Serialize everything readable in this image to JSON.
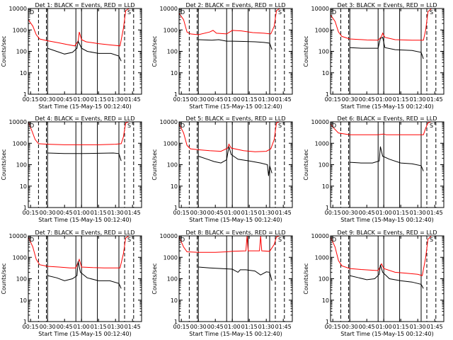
{
  "figure": {
    "xlabel": "Start Time (15-May-15 00:12:40)",
    "ylabel": "Counts/sec"
  },
  "chart_data": {
    "type": "line",
    "title_format": "Det {n}: BLACK = Events, RED = LLD",
    "x_unit": "minutes after 00:00 (15-May-15)",
    "xlim": [
      13,
      113
    ],
    "xticks": [
      15,
      30,
      45,
      60,
      75,
      90,
      105
    ],
    "xtick_labels": [
      "00:15",
      "00:30",
      "00:45",
      "01:00",
      "01:15",
      "01:30",
      "01:45"
    ],
    "yscale": "log",
    "ylim": [
      1,
      10000
    ],
    "yticks": [
      1,
      10,
      100,
      1000,
      10000
    ],
    "ytick_labels": [
      "1",
      "10",
      "100",
      "1000",
      "10000"
    ],
    "legend_marks": [
      "D",
      "S"
    ],
    "colors": {
      "events": "#000000",
      "lld": "#ff0000",
      "axes": "#000000"
    },
    "vlines_dashed": [
      22,
      29,
      98,
      106
    ],
    "vlines_solid": [
      30,
      55,
      60,
      74,
      93
    ],
    "panels": [
      {
        "det": 1,
        "lld": [
          [
            13,
            3000
          ],
          [
            17,
            1500
          ],
          [
            20,
            600
          ],
          [
            23,
            380
          ],
          [
            29,
            320
          ],
          [
            40,
            250
          ],
          [
            47,
            210
          ],
          [
            54,
            180
          ],
          [
            57,
            300
          ],
          [
            58,
            800
          ],
          [
            60,
            350
          ],
          [
            64,
            280
          ],
          [
            75,
            230
          ],
          [
            85,
            200
          ],
          [
            94,
            180
          ],
          [
            97,
            1200
          ],
          [
            99,
            8000
          ],
          [
            102,
            10000
          ],
          [
            110,
            10000
          ]
        ],
        "events": [
          [
            30,
            140
          ],
          [
            38,
            100
          ],
          [
            45,
            75
          ],
          [
            52,
            90
          ],
          [
            56,
            140
          ],
          [
            57,
            300
          ],
          [
            60,
            140
          ],
          [
            65,
            100
          ],
          [
            75,
            80
          ],
          [
            86,
            80
          ],
          [
            93,
            60
          ],
          [
            95,
            35
          ]
        ]
      },
      {
        "det": 2,
        "lld": [
          [
            13,
            6000
          ],
          [
            17,
            3000
          ],
          [
            20,
            800
          ],
          [
            23,
            650
          ],
          [
            30,
            600
          ],
          [
            40,
            800
          ],
          [
            43,
            950
          ],
          [
            46,
            700
          ],
          [
            55,
            650
          ],
          [
            60,
            950
          ],
          [
            68,
            900
          ],
          [
            78,
            750
          ],
          [
            88,
            700
          ],
          [
            94,
            650
          ],
          [
            97,
            1500
          ],
          [
            99,
            8000
          ],
          [
            102,
            10000
          ],
          [
            110,
            10000
          ]
        ],
        "events": [
          [
            30,
            350
          ],
          [
            42,
            330
          ],
          [
            48,
            350
          ],
          [
            55,
            300
          ],
          [
            60,
            300
          ],
          [
            70,
            290
          ],
          [
            80,
            280
          ],
          [
            88,
            260
          ],
          [
            93,
            240
          ],
          [
            95,
            120
          ]
        ]
      },
      {
        "det": 3,
        "lld": [
          [
            13,
            5000
          ],
          [
            17,
            2500
          ],
          [
            20,
            800
          ],
          [
            23,
            500
          ],
          [
            30,
            380
          ],
          [
            45,
            340
          ],
          [
            55,
            330
          ],
          [
            58,
            500
          ],
          [
            59,
            700
          ],
          [
            61,
            450
          ],
          [
            70,
            350
          ],
          [
            85,
            330
          ],
          [
            95,
            330
          ],
          [
            97,
            1000
          ],
          [
            99,
            7000
          ],
          [
            102,
            10000
          ],
          [
            110,
            10000
          ]
        ],
        "events": [
          [
            30,
            150
          ],
          [
            40,
            140
          ],
          [
            50,
            140
          ],
          [
            55,
            140
          ],
          [
            57,
            400
          ],
          [
            59,
            450
          ],
          [
            61,
            150
          ],
          [
            70,
            120
          ],
          [
            85,
            110
          ],
          [
            93,
            90
          ],
          [
            95,
            45
          ]
        ]
      },
      {
        "det": 4,
        "lld": [
          [
            13,
            10000
          ],
          [
            16,
            4000
          ],
          [
            19,
            1500
          ],
          [
            22,
            950
          ],
          [
            30,
            900
          ],
          [
            45,
            850
          ],
          [
            60,
            850
          ],
          [
            75,
            850
          ],
          [
            90,
            900
          ],
          [
            95,
            950
          ],
          [
            97,
            2000
          ],
          [
            99,
            9000
          ],
          [
            102,
            10000
          ],
          [
            110,
            10000
          ]
        ],
        "events": [
          [
            30,
            350
          ],
          [
            45,
            330
          ],
          [
            60,
            330
          ],
          [
            75,
            340
          ],
          [
            88,
            350
          ],
          [
            93,
            330
          ],
          [
            95,
            150
          ]
        ]
      },
      {
        "det": 5,
        "lld": [
          [
            13,
            8000
          ],
          [
            17,
            3000
          ],
          [
            20,
            800
          ],
          [
            23,
            550
          ],
          [
            30,
            500
          ],
          [
            40,
            450
          ],
          [
            50,
            420
          ],
          [
            56,
            600
          ],
          [
            57,
            900
          ],
          [
            59,
            600
          ],
          [
            70,
            450
          ],
          [
            80,
            400
          ],
          [
            90,
            420
          ],
          [
            94,
            550
          ],
          [
            97,
            1500
          ],
          [
            99,
            9000
          ],
          [
            102,
            10000
          ],
          [
            110,
            10000
          ]
        ],
        "events": [
          [
            30,
            250
          ],
          [
            38,
            180
          ],
          [
            44,
            140
          ],
          [
            50,
            120
          ],
          [
            55,
            170
          ],
          [
            57,
            700
          ],
          [
            59,
            300
          ],
          [
            65,
            180
          ],
          [
            75,
            150
          ],
          [
            85,
            120
          ],
          [
            91,
            100
          ],
          [
            92,
            30
          ],
          [
            93,
            90
          ],
          [
            95,
            40
          ]
        ]
      },
      {
        "det": 6,
        "lld": [
          [
            13,
            8000
          ],
          [
            16,
            5000
          ],
          [
            20,
            3000
          ],
          [
            30,
            2500
          ],
          [
            45,
            2500
          ],
          [
            55,
            2500
          ],
          [
            60,
            2700
          ],
          [
            62,
            2500
          ],
          [
            80,
            2500
          ],
          [
            95,
            2500
          ],
          [
            97,
            5000
          ],
          [
            99,
            9000
          ],
          [
            102,
            10000
          ],
          [
            110,
            10000
          ]
        ],
        "events": [
          [
            30,
            130
          ],
          [
            40,
            120
          ],
          [
            50,
            120
          ],
          [
            56,
            150
          ],
          [
            57,
            700
          ],
          [
            59,
            250
          ],
          [
            65,
            180
          ],
          [
            75,
            120
          ],
          [
            85,
            110
          ],
          [
            93,
            90
          ],
          [
            95,
            50
          ]
        ]
      },
      {
        "det": 7,
        "lld": [
          [
            13,
            9000
          ],
          [
            17,
            3000
          ],
          [
            20,
            800
          ],
          [
            23,
            450
          ],
          [
            30,
            380
          ],
          [
            40,
            350
          ],
          [
            50,
            320
          ],
          [
            55,
            320
          ],
          [
            57,
            600
          ],
          [
            58,
            800
          ],
          [
            60,
            350
          ],
          [
            70,
            330
          ],
          [
            80,
            320
          ],
          [
            94,
            320
          ],
          [
            97,
            1500
          ],
          [
            99,
            8000
          ],
          [
            102,
            10000
          ],
          [
            110,
            10000
          ]
        ],
        "events": [
          [
            30,
            140
          ],
          [
            38,
            110
          ],
          [
            45,
            80
          ],
          [
            52,
            100
          ],
          [
            56,
            140
          ],
          [
            57,
            650
          ],
          [
            59,
            200
          ],
          [
            65,
            110
          ],
          [
            75,
            80
          ],
          [
            85,
            80
          ],
          [
            93,
            60
          ],
          [
            95,
            35
          ]
        ]
      },
      {
        "det": 8,
        "lld": [
          [
            13,
            9000
          ],
          [
            17,
            3000
          ],
          [
            20,
            1800
          ],
          [
            30,
            1700
          ],
          [
            45,
            1700
          ],
          [
            55,
            1800
          ],
          [
            60,
            1900
          ],
          [
            72,
            2000
          ],
          [
            73,
            10000
          ],
          [
            74,
            2000
          ],
          [
            80,
            2000
          ],
          [
            84,
            2000
          ],
          [
            85,
            10000
          ],
          [
            86,
            2000
          ],
          [
            93,
            1900
          ],
          [
            97,
            4000
          ],
          [
            99,
            9000
          ],
          [
            102,
            10000
          ],
          [
            110,
            10000
          ]
        ],
        "events": [
          [
            30,
            350
          ],
          [
            40,
            320
          ],
          [
            50,
            300
          ],
          [
            60,
            280
          ],
          [
            65,
            200
          ],
          [
            67,
            260
          ],
          [
            72,
            260
          ],
          [
            80,
            230
          ],
          [
            85,
            150
          ],
          [
            90,
            210
          ],
          [
            93,
            200
          ],
          [
            95,
            80
          ]
        ]
      },
      {
        "det": 9,
        "lld": [
          [
            13,
            9000
          ],
          [
            17,
            3000
          ],
          [
            20,
            700
          ],
          [
            23,
            400
          ],
          [
            30,
            300
          ],
          [
            40,
            270
          ],
          [
            50,
            250
          ],
          [
            55,
            240
          ],
          [
            57,
            380
          ],
          [
            58,
            500
          ],
          [
            60,
            300
          ],
          [
            70,
            200
          ],
          [
            80,
            180
          ],
          [
            90,
            160
          ],
          [
            94,
            140
          ],
          [
            97,
            1000
          ],
          [
            99,
            7000
          ],
          [
            102,
            10000
          ],
          [
            110,
            10000
          ]
        ],
        "events": [
          [
            30,
            140
          ],
          [
            38,
            110
          ],
          [
            45,
            90
          ],
          [
            52,
            100
          ],
          [
            56,
            160
          ],
          [
            57,
            450
          ],
          [
            59,
            200
          ],
          [
            65,
            100
          ],
          [
            75,
            80
          ],
          [
            85,
            70
          ],
          [
            93,
            55
          ],
          [
            95,
            35
          ]
        ]
      }
    ]
  }
}
